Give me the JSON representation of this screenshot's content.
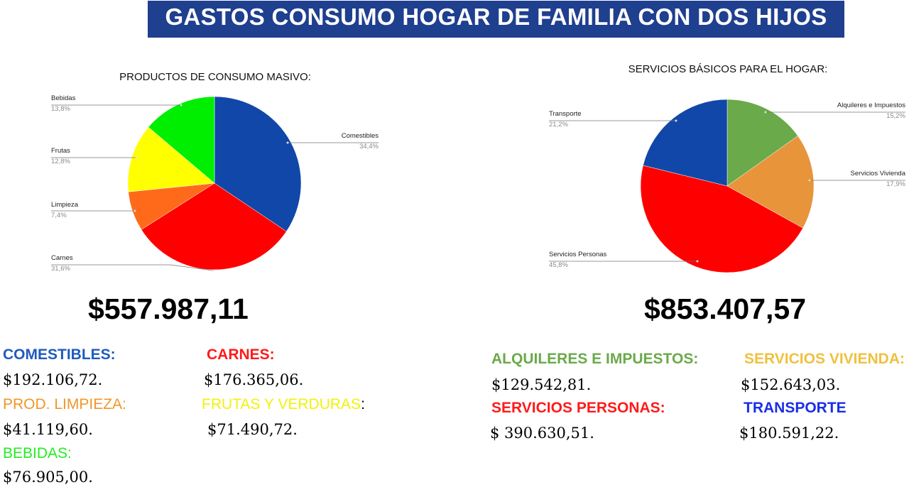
{
  "title": "GASTOS CONSUMO HOGAR DE FAMILIA CON DOS HIJOS",
  "chart_data": [
    {
      "type": "pie",
      "title": "PRODUCTOS DE CONSUMO MASIVO:",
      "slices": [
        {
          "label": "Comestibles",
          "value": 34.4,
          "pct": "34,4%",
          "color": "#1147a8"
        },
        {
          "label": "Carnes",
          "value": 31.6,
          "pct": "31,6%",
          "color": "#ff0000"
        },
        {
          "label": "Limpieza",
          "value": 7.4,
          "pct": "7,4%",
          "color": "#ff6a1a"
        },
        {
          "label": "Frutas",
          "value": 12.8,
          "pct": "12,8%",
          "color": "#ffff00"
        },
        {
          "label": "Bebidas",
          "value": 13.8,
          "pct": "13,8%",
          "color": "#00ee00"
        }
      ]
    },
    {
      "type": "pie",
      "title": "SERVICIOS BÁSICOS PARA EL HOGAR:",
      "slices": [
        {
          "label": "Alquileres e Impuestos",
          "value": 15.2,
          "pct": "15,2%",
          "color": "#6aaa4a"
        },
        {
          "label": "Servicios Vivienda",
          "value": 17.9,
          "pct": "17,9%",
          "color": "#e8943a"
        },
        {
          "label": "Servicios Personas",
          "value": 45.8,
          "pct": "45,8%",
          "color": "#ff0000"
        },
        {
          "label": "Transporte",
          "value": 21.2,
          "pct": "21,2%",
          "color": "#1147a8"
        }
      ]
    }
  ],
  "totals": {
    "left": "$557.987,11",
    "right": "$853.407,57"
  },
  "left_items": [
    {
      "label": "COMESTIBLES:",
      "amount": "$192.106,72.",
      "color": "#1f5bbf"
    },
    {
      "label": "CARNES:",
      "amount": "$176.365,06.",
      "color": "#ff1a1a"
    },
    {
      "label": "PROD. LIMPIEZA:",
      "amount": "$41.119,60.",
      "color": "#f0962a"
    },
    {
      "label": "FRUTAS Y VERDURAS",
      "suffix": ":",
      "amount": "$71.490,72.",
      "color": "#f2f20a"
    },
    {
      "label": "BEBIDAS:",
      "amount": "$76.905,00.",
      "color": "#22ee22"
    }
  ],
  "right_items": [
    {
      "label": "ALQUILERES E IMPUESTOS:",
      "amount": "$129.542,81.",
      "color": "#6aaa4a"
    },
    {
      "label": "SERVICIOS VIVIENDA:",
      "amount": "$152.643,03.",
      "color": "#f0c040"
    },
    {
      "label": "SERVICIOS PERSONAS:",
      "amount": "$ 390.630,51.",
      "color": "#ff1a1a"
    },
    {
      "label": "TRANSPORTE",
      "amount": "$180.591,22.",
      "color": "#1a2ee8"
    }
  ]
}
